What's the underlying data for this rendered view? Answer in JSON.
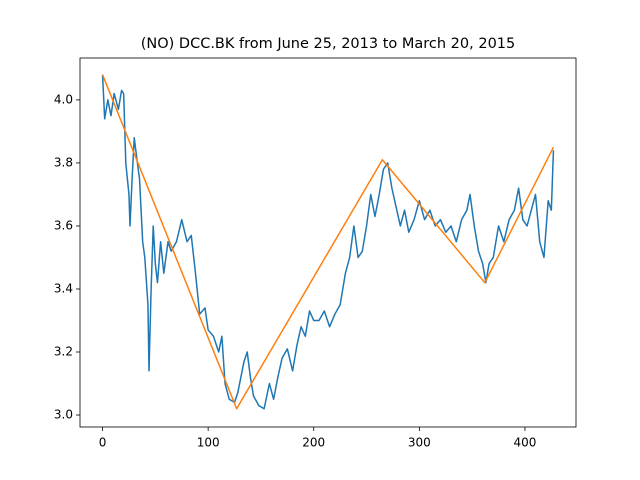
{
  "chart_data": {
    "type": "line",
    "title": "(NO) DCC.BK from June 25, 2013 to March 20, 2015",
    "xlim": [
      -21.35,
      448.35
    ],
    "ylim": [
      2.962,
      4.133
    ],
    "xticks": [
      0,
      100,
      200,
      300,
      400
    ],
    "yticks": [
      {
        "value": 3,
        "label": "3.0"
      },
      3.2,
      3.4,
      3.6,
      3.8,
      {
        "value": 4,
        "label": "4.0"
      }
    ],
    "grid": false,
    "series": [
      {
        "color": "#1f77b4",
        "x": [
          0,
          2,
          5,
          8,
          11,
          15,
          18,
          20,
          22,
          25,
          26,
          28,
          30,
          33,
          35,
          38,
          40,
          43,
          44,
          46,
          48,
          50,
          52,
          55,
          58,
          62,
          65,
          70,
          75,
          80,
          84,
          88,
          92,
          97,
          100,
          105,
          110,
          113,
          116,
          120,
          125,
          128,
          131,
          134,
          137,
          140,
          143,
          148,
          153,
          158,
          162,
          166,
          170,
          175,
          180,
          184,
          188,
          192,
          196,
          200,
          205,
          210,
          215,
          220,
          225,
          230,
          234,
          238,
          242,
          246,
          250,
          254,
          258,
          262,
          266,
          270,
          274,
          278,
          282,
          286,
          290,
          295,
          300,
          305,
          310,
          315,
          320,
          325,
          330,
          335,
          340,
          345,
          348,
          352,
          356,
          360,
          363,
          366,
          370,
          375,
          380,
          385,
          390,
          394,
          398,
          402,
          406,
          410,
          414,
          418,
          422,
          425,
          427
        ],
        "values": [
          4.08,
          3.94,
          4.0,
          3.95,
          4.02,
          3.97,
          4.03,
          4.02,
          3.8,
          3.7,
          3.6,
          3.75,
          3.88,
          3.8,
          3.75,
          3.55,
          3.5,
          3.35,
          3.14,
          3.4,
          3.6,
          3.48,
          3.42,
          3.55,
          3.45,
          3.55,
          3.52,
          3.55,
          3.62,
          3.55,
          3.57,
          3.45,
          3.32,
          3.34,
          3.27,
          3.25,
          3.2,
          3.25,
          3.1,
          3.05,
          3.04,
          3.07,
          3.12,
          3.17,
          3.2,
          3.12,
          3.06,
          3.03,
          3.02,
          3.1,
          3.05,
          3.12,
          3.18,
          3.21,
          3.14,
          3.22,
          3.28,
          3.25,
          3.33,
          3.3,
          3.3,
          3.33,
          3.28,
          3.32,
          3.35,
          3.45,
          3.5,
          3.6,
          3.5,
          3.52,
          3.6,
          3.7,
          3.63,
          3.7,
          3.78,
          3.8,
          3.72,
          3.66,
          3.6,
          3.65,
          3.58,
          3.62,
          3.68,
          3.62,
          3.65,
          3.6,
          3.62,
          3.58,
          3.6,
          3.55,
          3.62,
          3.65,
          3.7,
          3.6,
          3.52,
          3.48,
          3.42,
          3.48,
          3.5,
          3.6,
          3.55,
          3.62,
          3.65,
          3.72,
          3.62,
          3.6,
          3.65,
          3.7,
          3.55,
          3.5,
          3.68,
          3.65,
          3.84
        ]
      },
      {
        "color": "#ff7f0e",
        "x": [
          0,
          127,
          265,
          362,
          427
        ],
        "values": [
          4.08,
          3.02,
          3.81,
          3.42,
          3.85
        ]
      }
    ]
  }
}
